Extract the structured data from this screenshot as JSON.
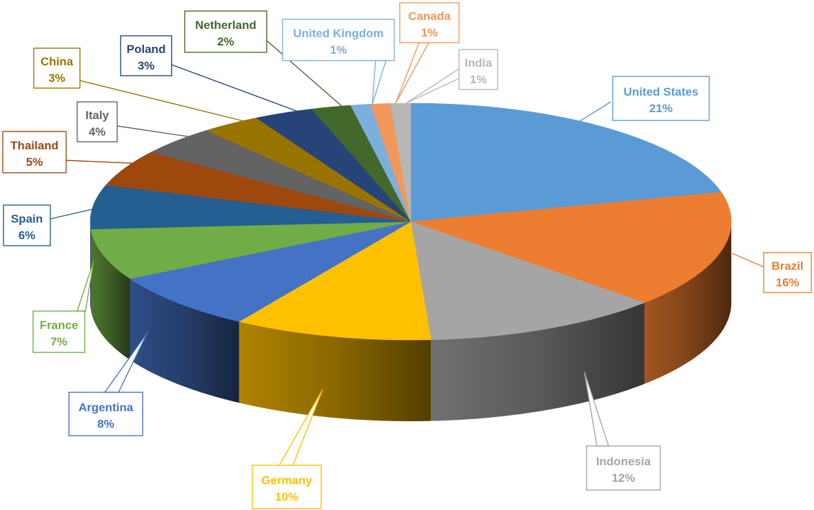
{
  "chart_data": {
    "type": "pie",
    "title": "",
    "categories": [
      "United States",
      "Brazil",
      "Indonesia",
      "Germany",
      "Argentina",
      "France",
      "Spain",
      "Thailand",
      "Italy",
      "China",
      "Poland",
      "Netherland",
      "United Kingdom",
      "Canada",
      "India"
    ],
    "values": [
      21,
      16,
      12,
      10,
      8,
      7,
      6,
      5,
      4,
      3,
      3,
      2,
      1,
      1,
      1
    ],
    "labels": [
      "21%",
      "16%",
      "12%",
      "10%",
      "8%",
      "7%",
      "6%",
      "5%",
      "4%",
      "3%",
      "3%",
      "2%",
      "1%",
      "1%",
      "1%"
    ],
    "colors": [
      "#5B9BD5",
      "#ED7D31",
      "#A5A5A5",
      "#FFC000",
      "#4472C4",
      "#70AD47",
      "#255E91",
      "#9E480E",
      "#636363",
      "#997300",
      "#264478",
      "#43682B",
      "#7CAFDD",
      "#F1975A",
      "#B7B7B7"
    ],
    "style": "3d-pie",
    "legend": "none"
  }
}
